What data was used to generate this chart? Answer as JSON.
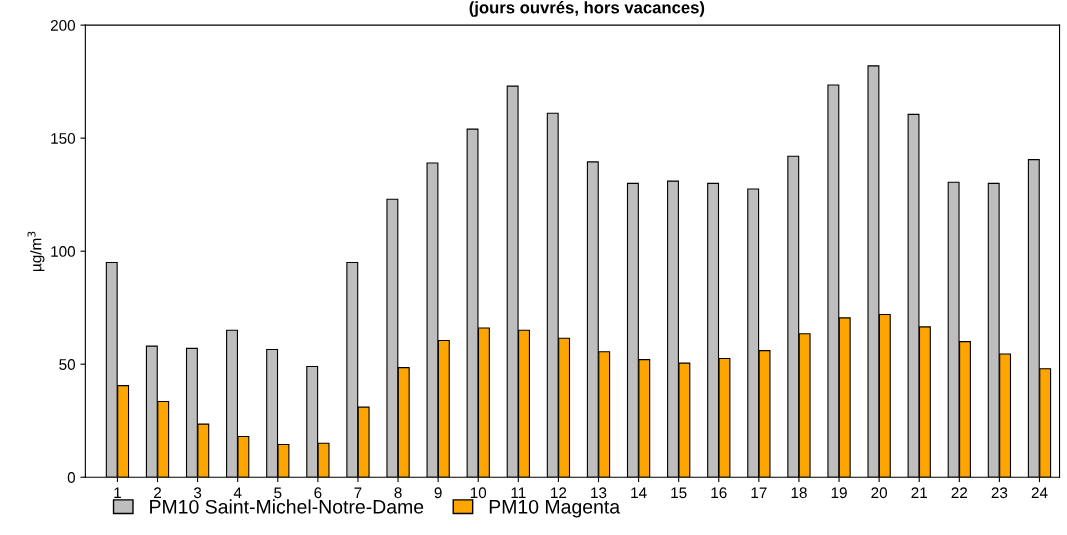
{
  "chart_data": {
    "type": "bar",
    "title": "(jours ouvrés, hors vacances)",
    "ylabel": "µg/m$^{3}$",
    "categories": [
      "1",
      "2",
      "3",
      "4",
      "5",
      "6",
      "7",
      "8",
      "9",
      "10",
      "11",
      "12",
      "13",
      "14",
      "15",
      "16",
      "17",
      "18",
      "19",
      "20",
      "21",
      "22",
      "23",
      "24"
    ],
    "series": [
      {
        "name": "PM10 Saint-Michel-Notre-Dame",
        "color": "#bebebe",
        "values": [
          95,
          58,
          57,
          65,
          56.5,
          49,
          95,
          123,
          139,
          154,
          173,
          161,
          139.5,
          130,
          131,
          130,
          127.5,
          142,
          173.5,
          182,
          160.5,
          130.5,
          130,
          140.5
        ]
      },
      {
        "name": "PM10 Magenta",
        "color": "#ffa500",
        "values": [
          40.5,
          33.5,
          23.5,
          18,
          14.5,
          15,
          31,
          48.5,
          60.5,
          66,
          65,
          61.5,
          55.5,
          52,
          50.5,
          52.5,
          56,
          63.5,
          70.5,
          72,
          66.5,
          60,
          54.5,
          48
        ]
      }
    ],
    "ylim": [
      0,
      200
    ],
    "yticks": [
      0,
      50,
      100,
      150,
      200
    ],
    "grid": false,
    "legend": "bottom left"
  }
}
